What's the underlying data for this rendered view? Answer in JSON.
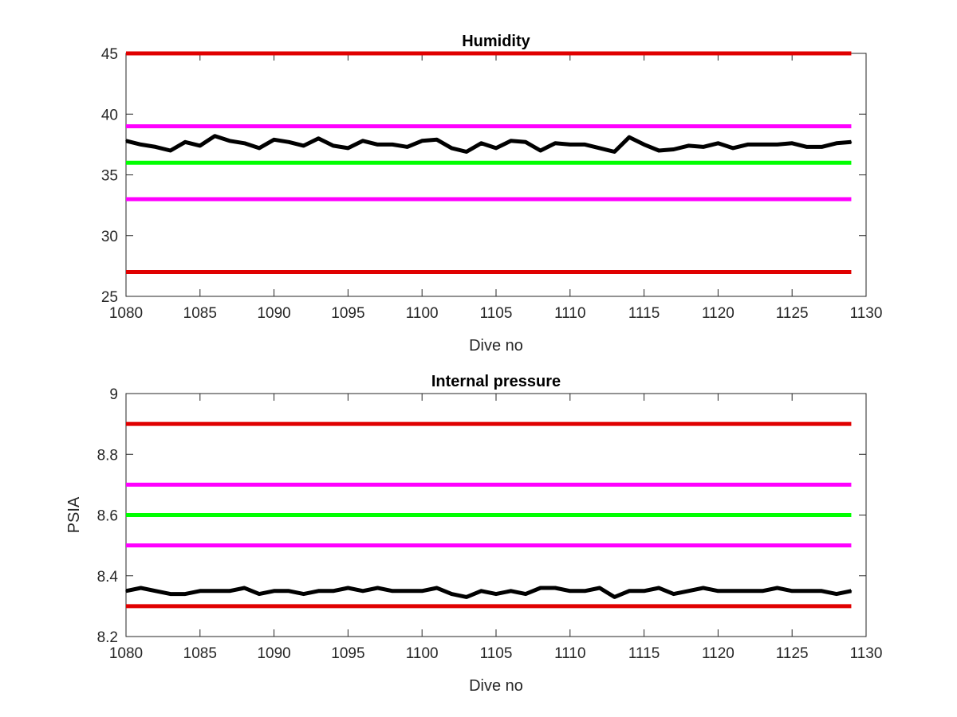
{
  "chart_data": [
    {
      "type": "line",
      "title": "Humidity",
      "xlabel": "Dive no",
      "ylabel": "",
      "xlim": [
        1080,
        1130
      ],
      "ylim": [
        25,
        45
      ],
      "xticks": [
        1080,
        1085,
        1090,
        1095,
        1100,
        1105,
        1110,
        1115,
        1120,
        1125,
        1130
      ],
      "yticks": [
        25,
        30,
        35,
        40,
        45
      ],
      "grid": false,
      "reference_lines": [
        {
          "y": 45,
          "color": "#e00000"
        },
        {
          "y": 39,
          "color": "#ff00ff"
        },
        {
          "y": 36,
          "color": "#00ff00"
        },
        {
          "y": 33,
          "color": "#ff00ff"
        },
        {
          "y": 27,
          "color": "#e00000"
        }
      ],
      "series": [
        {
          "color": "#000000",
          "x": [
            1080,
            1081,
            1082,
            1083,
            1084,
            1085,
            1086,
            1087,
            1088,
            1089,
            1090,
            1091,
            1092,
            1093,
            1094,
            1095,
            1096,
            1097,
            1098,
            1099,
            1100,
            1101,
            1102,
            1103,
            1104,
            1105,
            1106,
            1107,
            1108,
            1109,
            1110,
            1111,
            1112,
            1113,
            1114,
            1115,
            1116,
            1117,
            1118,
            1119,
            1120,
            1121,
            1122,
            1123,
            1124,
            1125,
            1126,
            1127,
            1128,
            1129
          ],
          "y": [
            37.8,
            37.5,
            37.3,
            37.0,
            37.7,
            37.4,
            38.2,
            37.8,
            37.6,
            37.2,
            37.9,
            37.7,
            37.4,
            38.0,
            37.4,
            37.2,
            37.8,
            37.5,
            37.5,
            37.3,
            37.8,
            37.9,
            37.2,
            36.9,
            37.6,
            37.2,
            37.8,
            37.7,
            37.0,
            37.6,
            37.5,
            37.5,
            37.2,
            36.9,
            38.1,
            37.5,
            37.0,
            37.1,
            37.4,
            37.3,
            37.6,
            37.2,
            37.5,
            37.5,
            37.5,
            37.6,
            37.3,
            37.3,
            37.6,
            37.7
          ]
        }
      ]
    },
    {
      "type": "line",
      "title": "Internal pressure",
      "xlabel": "Dive no",
      "ylabel": "PSIA",
      "xlim": [
        1080,
        1130
      ],
      "ylim": [
        8.2,
        9.0
      ],
      "xticks": [
        1080,
        1085,
        1090,
        1095,
        1100,
        1105,
        1110,
        1115,
        1120,
        1125,
        1130
      ],
      "yticks": [
        "8.2",
        "8.4",
        "8.6",
        "8.8",
        "9"
      ],
      "grid": false,
      "reference_lines": [
        {
          "y": 8.9,
          "color": "#e00000"
        },
        {
          "y": 8.7,
          "color": "#ff00ff"
        },
        {
          "y": 8.6,
          "color": "#00ff00"
        },
        {
          "y": 8.5,
          "color": "#ff00ff"
        },
        {
          "y": 8.3,
          "color": "#e00000"
        }
      ],
      "series": [
        {
          "color": "#000000",
          "x": [
            1080,
            1081,
            1082,
            1083,
            1084,
            1085,
            1086,
            1087,
            1088,
            1089,
            1090,
            1091,
            1092,
            1093,
            1094,
            1095,
            1096,
            1097,
            1098,
            1099,
            1100,
            1101,
            1102,
            1103,
            1104,
            1105,
            1106,
            1107,
            1108,
            1109,
            1110,
            1111,
            1112,
            1113,
            1114,
            1115,
            1116,
            1117,
            1118,
            1119,
            1120,
            1121,
            1122,
            1123,
            1124,
            1125,
            1126,
            1127,
            1128,
            1129
          ],
          "y": [
            8.35,
            8.36,
            8.35,
            8.34,
            8.34,
            8.35,
            8.35,
            8.35,
            8.36,
            8.34,
            8.35,
            8.35,
            8.34,
            8.35,
            8.35,
            8.36,
            8.35,
            8.36,
            8.35,
            8.35,
            8.35,
            8.36,
            8.34,
            8.33,
            8.35,
            8.34,
            8.35,
            8.34,
            8.36,
            8.36,
            8.35,
            8.35,
            8.36,
            8.33,
            8.35,
            8.35,
            8.36,
            8.34,
            8.35,
            8.36,
            8.35,
            8.35,
            8.35,
            8.35,
            8.36,
            8.35,
            8.35,
            8.35,
            8.34,
            8.35
          ]
        }
      ]
    }
  ]
}
